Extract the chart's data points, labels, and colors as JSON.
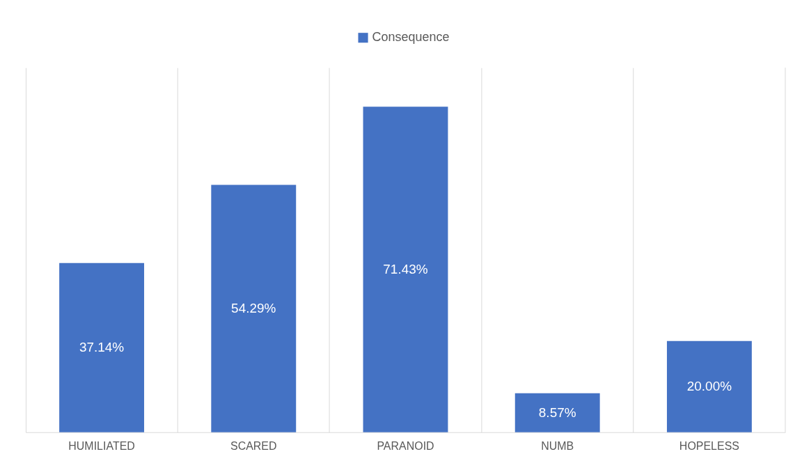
{
  "chart_data": {
    "type": "bar",
    "categories": [
      "HUMILIATED",
      "SCARED",
      "PARANOID",
      "NUMB",
      "HOPELESS"
    ],
    "series": [
      {
        "name": "Consequence",
        "color": "#4472c4",
        "values": [
          37.14,
          54.29,
          71.43,
          8.57,
          20.0
        ],
        "value_labels": [
          "37.14%",
          "54.29%",
          "71.43%",
          "8.57%",
          "20.00%"
        ]
      }
    ],
    "ylim": [
      0,
      80
    ],
    "grid": "x",
    "legend": "top"
  }
}
